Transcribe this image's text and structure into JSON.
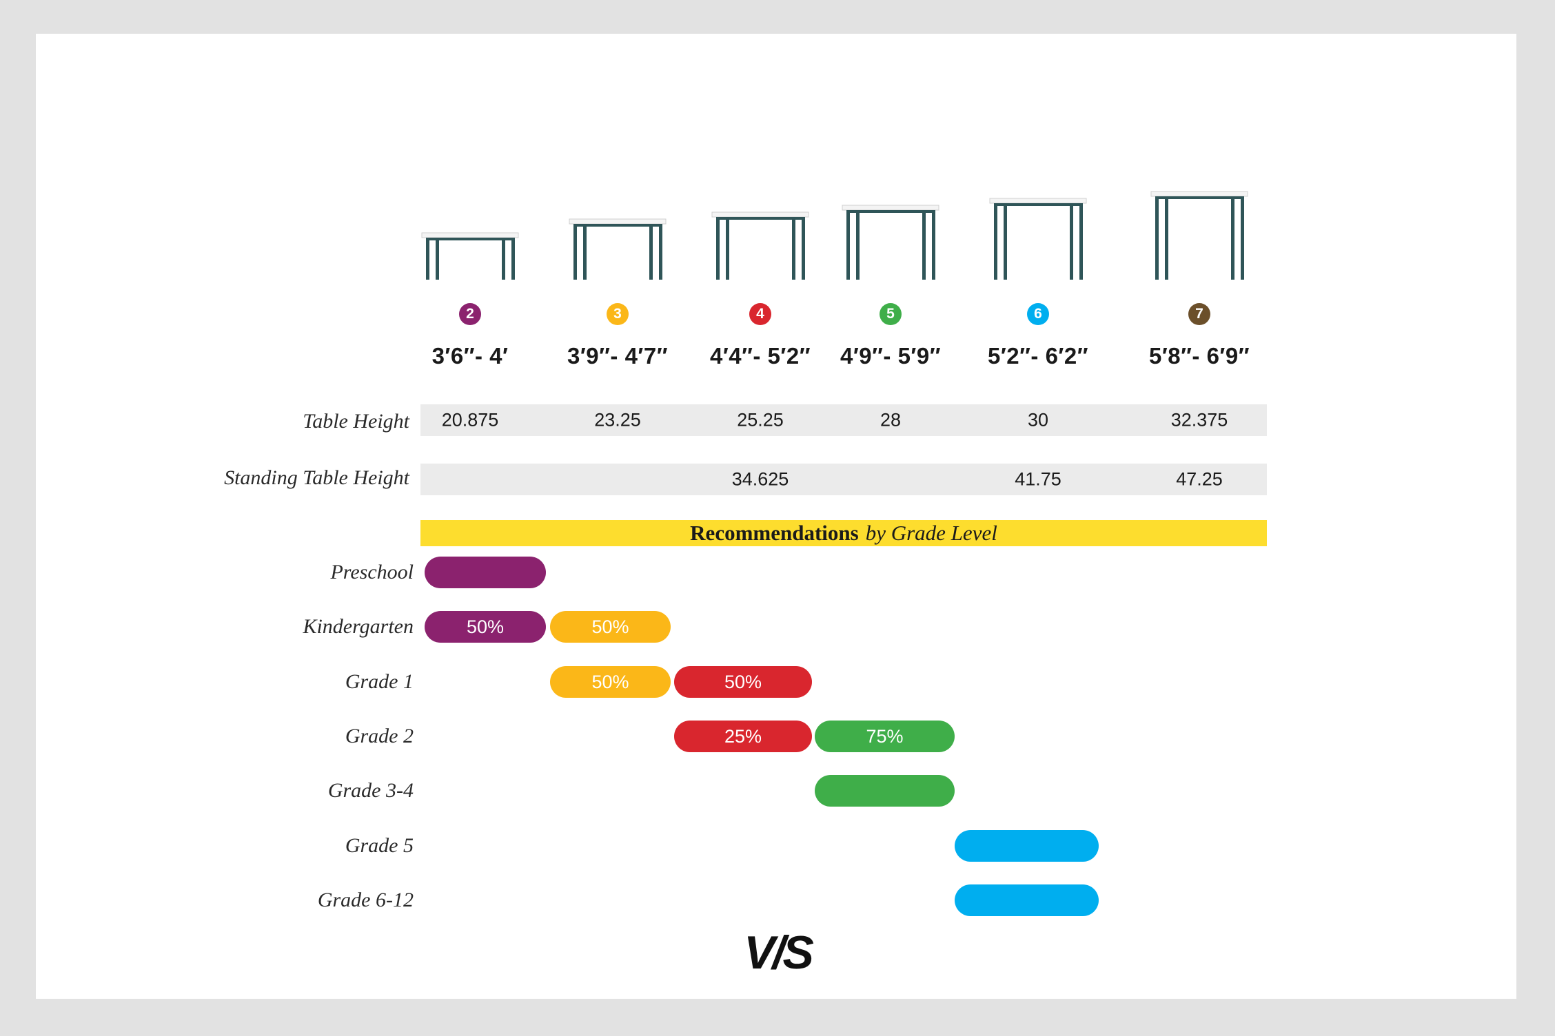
{
  "chart_data": {
    "type": "table",
    "columns": [
      {
        "size": "2",
        "color": "#8b226e",
        "range": "3′6″- 4′",
        "table_height": "20.875",
        "standing_height": ""
      },
      {
        "size": "3",
        "color": "#fbb718",
        "range": "3′9″- 4′7″",
        "table_height": "23.25",
        "standing_height": ""
      },
      {
        "size": "4",
        "color": "#d9262e",
        "range": "4′4″- 5′2″",
        "table_height": "25.25",
        "standing_height": "34.625"
      },
      {
        "size": "5",
        "color": "#3fae49",
        "range": "4′9″- 5′9″",
        "table_height": "28",
        "standing_height": ""
      },
      {
        "size": "6",
        "color": "#00aeef",
        "range": "5′2″- 6′2″",
        "table_height": "30",
        "standing_height": "41.75"
      },
      {
        "size": "7",
        "color": "#6b4f2a",
        "range": "5′8″- 6′9″",
        "table_height": "32.375",
        "standing_height": "47.25"
      }
    ],
    "rows": {
      "table_height_label": "Table Height",
      "standing_height_label": "Standing Table Height"
    },
    "recommendations_title_bold": "Recommendations",
    "recommendations_title_italic": "by Grade Level",
    "grades": [
      {
        "label": "Preschool",
        "segments": [
          {
            "size": "2",
            "label": ""
          }
        ]
      },
      {
        "label": "Kindergarten",
        "segments": [
          {
            "size": "2",
            "label": "50%"
          },
          {
            "size": "3",
            "label": "50%"
          }
        ]
      },
      {
        "label": "Grade 1",
        "segments": [
          {
            "size": "3",
            "label": "50%"
          },
          {
            "size": "4",
            "label": "50%"
          }
        ]
      },
      {
        "label": "Grade 2",
        "segments": [
          {
            "size": "4",
            "label": "25%"
          },
          {
            "size": "5",
            "label": "75%"
          }
        ]
      },
      {
        "label": "Grade 3-4",
        "segments": [
          {
            "size": "5",
            "label": ""
          }
        ]
      },
      {
        "label": "Grade 5",
        "segments": [
          {
            "size": "6",
            "label": ""
          }
        ]
      },
      {
        "label": "Grade 6-12",
        "segments": [
          {
            "size": "6",
            "label": ""
          }
        ]
      }
    ]
  },
  "logo_text": "V/S",
  "table_icon_color": "#2f5558",
  "table_top_color": "#f4f4f4"
}
